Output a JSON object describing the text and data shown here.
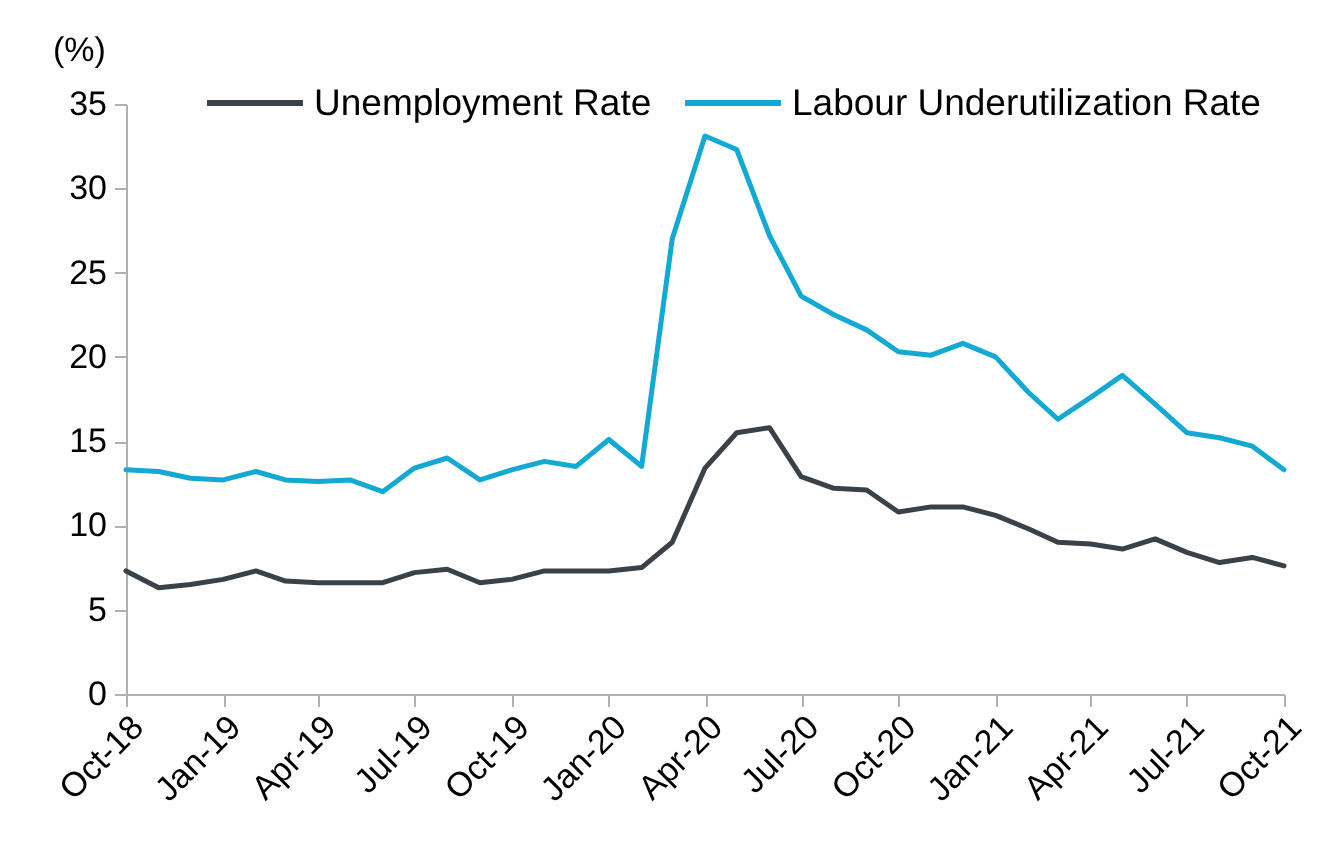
{
  "chart_data": {
    "type": "line",
    "ylabel": "(%)",
    "x": [
      "2018-10",
      "2018-11",
      "2018-12",
      "2019-01",
      "2019-02",
      "2019-03",
      "2019-04",
      "2019-05",
      "2019-06",
      "2019-07",
      "2019-08",
      "2019-09",
      "2019-10",
      "2019-11",
      "2019-12",
      "2020-01",
      "2020-02",
      "2020-03",
      "2020-04",
      "2020-05",
      "2020-06",
      "2020-07",
      "2020-08",
      "2020-09",
      "2020-10",
      "2020-11",
      "2020-12",
      "2021-01",
      "2021-02",
      "2021-03",
      "2021-04",
      "2021-05",
      "2021-06",
      "2021-07",
      "2021-08",
      "2021-09",
      "2021-10"
    ],
    "series": [
      {
        "name": "Unemployment Rate",
        "color": "#3a4149",
        "values": [
          7.3,
          6.3,
          6.5,
          6.8,
          7.3,
          6.7,
          6.6,
          6.6,
          6.6,
          7.2,
          7.4,
          6.6,
          6.8,
          7.3,
          7.3,
          7.3,
          7.5,
          9.0,
          13.4,
          15.5,
          15.8,
          12.9,
          12.2,
          12.1,
          10.8,
          11.1,
          11.1,
          10.6,
          9.8,
          9.0,
          8.9,
          8.6,
          9.2,
          8.4,
          7.8,
          8.1,
          7.6
        ]
      },
      {
        "name": "Labour Underutilization Rate",
        "color": "#12a9d4",
        "values": [
          13.3,
          13.2,
          12.8,
          12.7,
          13.2,
          12.7,
          12.6,
          12.7,
          12.0,
          13.4,
          14.0,
          12.7,
          13.3,
          13.8,
          13.5,
          15.1,
          13.5,
          27.0,
          33.1,
          32.3,
          27.2,
          23.6,
          22.5,
          21.6,
          20.3,
          20.1,
          20.8,
          20.0,
          17.9,
          16.3,
          17.6,
          18.9,
          17.2,
          15.5,
          15.2,
          14.7,
          13.3
        ]
      }
    ],
    "xlim": [
      "2018-10",
      "2021-10"
    ],
    "xticks": [
      {
        "value": "2018-10",
        "label": "Oct-18"
      },
      {
        "value": "2019-01",
        "label": "Jan-19"
      },
      {
        "value": "2019-04",
        "label": "Apr-19"
      },
      {
        "value": "2019-07",
        "label": "Jul-19"
      },
      {
        "value": "2019-10",
        "label": "Oct-19"
      },
      {
        "value": "2020-01",
        "label": "Jan-20"
      },
      {
        "value": "2020-04",
        "label": "Apr-20"
      },
      {
        "value": "2020-07",
        "label": "Jul-20"
      },
      {
        "value": "2020-10",
        "label": "Oct-20"
      },
      {
        "value": "2021-01",
        "label": "Jan-21"
      },
      {
        "value": "2021-04",
        "label": "Apr-21"
      },
      {
        "value": "2021-07",
        "label": "Jul-21"
      },
      {
        "value": "2021-10",
        "label": "Oct-21"
      }
    ],
    "ylim": [
      0,
      35
    ],
    "yticks": [
      0,
      5,
      10,
      15,
      20,
      25,
      30,
      35
    ],
    "grid": false,
    "legend": "top right",
    "marker": "none",
    "line_style": "solid"
  }
}
